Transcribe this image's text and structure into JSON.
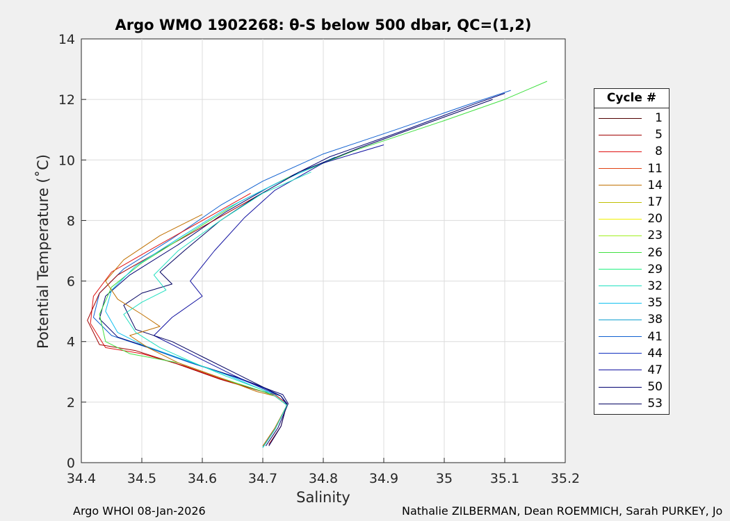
{
  "chart_data": {
    "type": "line",
    "title": "Argo WMO 1902268: θ-S below 500 dbar,  QC=(1,2)",
    "xlabel": "Salinity",
    "ylabel": "Potential Temperature (˚C)",
    "xlim": [
      34.4,
      35.2
    ],
    "ylim": [
      0,
      14
    ],
    "xticks": [
      "34.4",
      "34.5",
      "34.6",
      "34.7",
      "34.8",
      "34.9",
      "35",
      "35.1",
      "35.2"
    ],
    "yticks": [
      "0",
      "2",
      "4",
      "6",
      "8",
      "10",
      "12",
      "14"
    ],
    "grid": true,
    "legend": {
      "title": "Cycle #",
      "placement": "right",
      "entries": [
        {
          "label": "1",
          "color": "#500000"
        },
        {
          "label": "5",
          "color": "#a00000"
        },
        {
          "label": "8",
          "color": "#e01010"
        },
        {
          "label": "11",
          "color": "#e04010"
        },
        {
          "label": "14",
          "color": "#c07000"
        },
        {
          "label": "17",
          "color": "#c0c000"
        },
        {
          "label": "20",
          "color": "#f0f000"
        },
        {
          "label": "23",
          "color": "#a0f020"
        },
        {
          "label": "26",
          "color": "#40e040"
        },
        {
          "label": "29",
          "color": "#20f080"
        },
        {
          "label": "32",
          "color": "#20e0c0"
        },
        {
          "label": "35",
          "color": "#10c0f0"
        },
        {
          "label": "38",
          "color": "#10a0d0"
        },
        {
          "label": "41",
          "color": "#1060d0"
        },
        {
          "label": "44",
          "color": "#1030c0"
        },
        {
          "label": "47",
          "color": "#1010a0"
        },
        {
          "label": "50",
          "color": "#000070"
        },
        {
          "label": "53",
          "color": "#000060"
        }
      ]
    },
    "series": [
      {
        "color": "#1060d0",
        "x": [
          34.7,
          34.72,
          34.74,
          34.73,
          34.71,
          34.65,
          34.58,
          34.51,
          34.45,
          34.42,
          34.43,
          34.47,
          34.55,
          34.63,
          34.7,
          34.8,
          34.92,
          35.05,
          35.11
        ],
        "y": [
          0.5,
          1.1,
          1.9,
          2.2,
          2.4,
          2.85,
          3.3,
          3.8,
          4.2,
          4.8,
          5.6,
          6.4,
          7.4,
          8.5,
          9.3,
          10.2,
          11.0,
          11.9,
          12.3
        ]
      },
      {
        "color": "#000070",
        "x": [
          34.705,
          34.725,
          34.742,
          34.733,
          34.715,
          34.66,
          34.59,
          34.52,
          34.46,
          34.43,
          34.44,
          34.48,
          34.56,
          34.64,
          34.71,
          34.81,
          34.93,
          35.05,
          35.1
        ],
        "y": [
          0.55,
          1.15,
          1.95,
          2.25,
          2.38,
          2.8,
          3.25,
          3.75,
          4.15,
          4.75,
          5.5,
          6.2,
          7.2,
          8.3,
          9.1,
          10.1,
          10.95,
          11.85,
          12.2
        ]
      },
      {
        "color": "#e01010",
        "x": [
          34.7,
          34.72,
          34.74,
          34.72,
          34.7,
          34.64,
          34.57,
          34.5,
          34.44,
          34.415,
          34.42,
          34.45,
          34.52,
          34.6,
          34.68
        ],
        "y": [
          0.55,
          1.1,
          1.9,
          2.2,
          2.35,
          2.7,
          3.2,
          3.6,
          3.8,
          4.6,
          5.5,
          6.3,
          7.1,
          8.0,
          8.9
        ]
      },
      {
        "color": "#a00000",
        "x": [
          34.71,
          34.73,
          34.74,
          34.72,
          34.69,
          34.63,
          34.56,
          34.49,
          34.43,
          34.41,
          34.43,
          34.46,
          34.53,
          34.61,
          34.69
        ],
        "y": [
          0.6,
          1.2,
          1.95,
          2.25,
          2.4,
          2.75,
          3.25,
          3.7,
          3.9,
          4.7,
          5.6,
          6.2,
          7.0,
          7.9,
          8.8
        ]
      },
      {
        "color": "#40e040",
        "x": [
          34.7,
          34.72,
          34.74,
          34.72,
          34.7,
          34.63,
          34.56,
          34.48,
          34.44,
          34.43,
          34.45,
          34.5,
          34.58,
          34.66,
          34.74,
          34.85,
          35.0,
          35.1,
          35.17
        ],
        "y": [
          0.5,
          1.1,
          1.9,
          2.2,
          2.35,
          2.8,
          3.3,
          3.6,
          4.0,
          4.9,
          5.8,
          6.6,
          7.6,
          8.6,
          9.4,
          10.3,
          11.3,
          12.0,
          12.6
        ]
      },
      {
        "color": "#10c0f0",
        "x": [
          34.7,
          34.72,
          34.74,
          34.73,
          34.7,
          34.64,
          34.57,
          34.5,
          34.46,
          34.44,
          34.45,
          34.49,
          34.56,
          34.64,
          34.72,
          34.82
        ],
        "y": [
          0.52,
          1.1,
          1.9,
          2.2,
          2.4,
          2.9,
          3.4,
          3.9,
          4.3,
          5.0,
          5.7,
          6.5,
          7.4,
          8.4,
          9.2,
          10.1
        ]
      },
      {
        "color": "#1010a0",
        "x": [
          34.7,
          34.72,
          34.74,
          34.73,
          34.7,
          34.65,
          34.6,
          34.56,
          34.52,
          34.55,
          34.6,
          34.58,
          34.62,
          34.67,
          34.72,
          34.8,
          34.9
        ],
        "y": [
          0.5,
          1.1,
          1.9,
          2.2,
          2.45,
          2.9,
          3.4,
          3.8,
          4.2,
          4.8,
          5.5,
          6.0,
          7.0,
          8.1,
          9.0,
          9.9,
          10.5
        ]
      },
      {
        "color": "#000060",
        "x": [
          34.71,
          34.73,
          34.74,
          34.73,
          34.71,
          34.66,
          34.6,
          34.55,
          34.49,
          34.47,
          34.5,
          34.55,
          34.53,
          34.57,
          34.63,
          34.69,
          34.76,
          34.86,
          34.97,
          35.08
        ],
        "y": [
          0.55,
          1.2,
          1.95,
          2.2,
          2.4,
          2.9,
          3.5,
          4.0,
          4.4,
          5.2,
          5.6,
          5.9,
          6.3,
          7.0,
          8.0,
          8.8,
          9.6,
          10.4,
          11.2,
          12.0
        ]
      },
      {
        "color": "#c07000",
        "x": [
          34.7,
          34.72,
          34.74,
          34.72,
          34.69,
          34.63,
          34.56,
          34.51,
          34.48,
          34.53,
          34.5,
          34.46,
          34.44,
          34.47,
          34.53,
          34.6
        ],
        "y": [
          0.55,
          1.15,
          1.9,
          2.2,
          2.35,
          2.8,
          3.3,
          3.8,
          4.2,
          4.5,
          4.9,
          5.4,
          6.0,
          6.7,
          7.5,
          8.2
        ]
      },
      {
        "color": "#20e0c0",
        "x": [
          34.7,
          34.72,
          34.74,
          34.72,
          34.7,
          34.64,
          34.58,
          34.53,
          34.49,
          34.47,
          34.5,
          34.54,
          34.52,
          34.56,
          34.63,
          34.7,
          34.78
        ],
        "y": [
          0.5,
          1.1,
          1.9,
          2.2,
          2.4,
          2.85,
          3.35,
          3.8,
          4.3,
          4.9,
          5.3,
          5.7,
          6.2,
          7.0,
          8.0,
          8.9,
          9.6
        ]
      }
    ]
  },
  "footer": {
    "left": "Argo WHOI 08-Jan-2026",
    "right": "Nathalie ZILBERMAN, Dean ROEMMICH, Sarah PURKEY, Jo"
  }
}
